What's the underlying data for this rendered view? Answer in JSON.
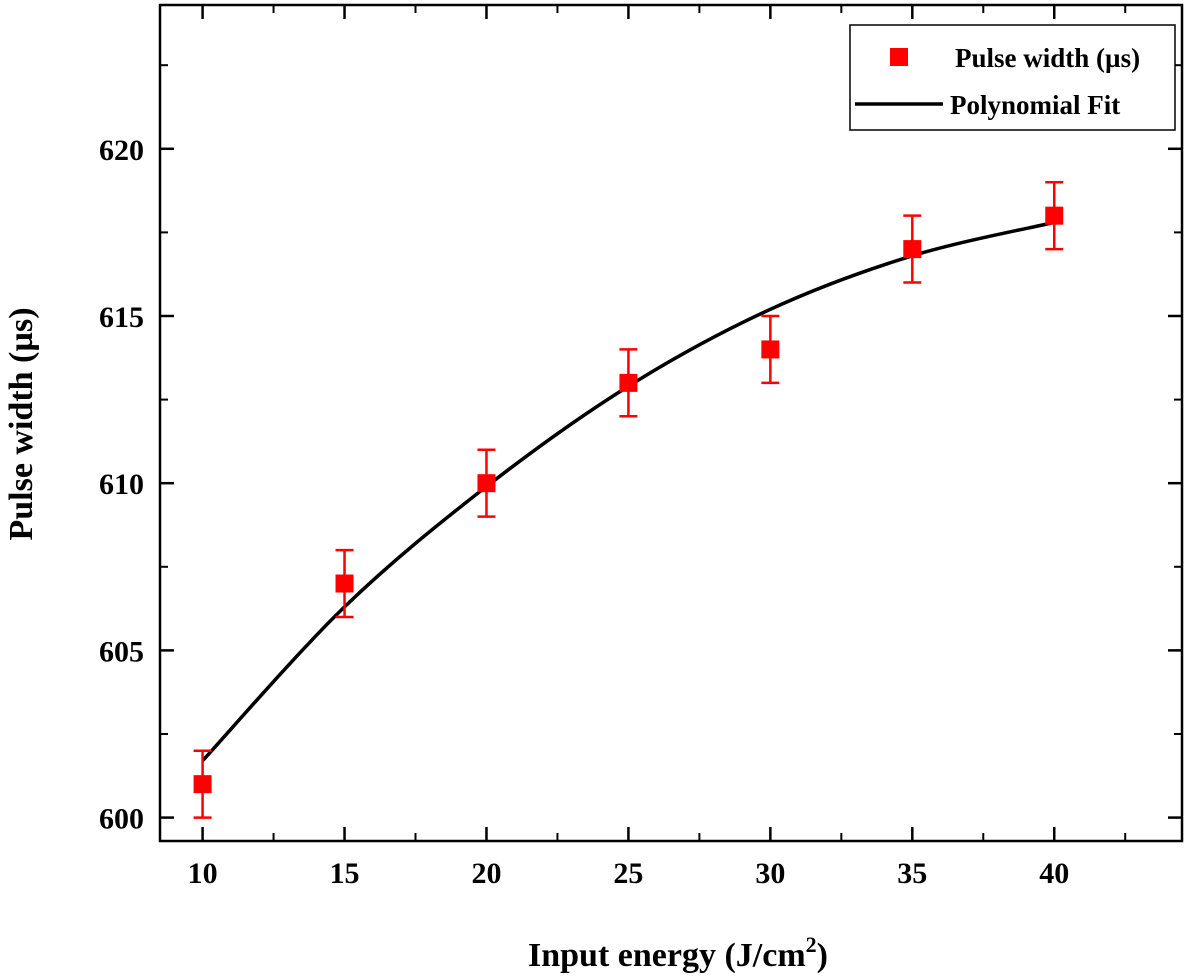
{
  "chart_data": {
    "type": "scatter",
    "title": "",
    "xlabel": "Input energy (J/cm",
    "xlabel_sup": "2",
    "xlabel_close": ")",
    "ylabel": "Pulse width (µs)",
    "xlim": [
      8.5,
      44.5
    ],
    "ylim": [
      599.3,
      624.3
    ],
    "x_ticks": [
      10,
      15,
      20,
      25,
      30,
      35,
      40
    ],
    "x_tick_labels": [
      "10",
      "15",
      "20",
      "25",
      "30",
      "35",
      "40"
    ],
    "y_ticks": [
      600,
      605,
      610,
      615,
      620
    ],
    "y_tick_labels": [
      "600",
      "605",
      "610",
      "615",
      "620"
    ],
    "grid": false,
    "legend_position": "top-right",
    "series": [
      {
        "name": "Pulse width (µs)",
        "kind": "scatter-errorbar",
        "color": "#ff0000",
        "x": [
          10,
          15,
          20,
          25,
          30,
          35,
          40
        ],
        "y": [
          601,
          607,
          610,
          613,
          614,
          617,
          618
        ],
        "error": [
          1,
          1,
          1,
          1,
          1,
          1,
          1
        ]
      },
      {
        "name": "Polynomial Fit",
        "kind": "line",
        "color": "#000000",
        "x": [
          10,
          15,
          20,
          25,
          30,
          35,
          40
        ],
        "y": [
          601.7,
          606.3,
          609.9,
          612.9,
          615.2,
          616.8,
          617.8
        ]
      }
    ]
  }
}
